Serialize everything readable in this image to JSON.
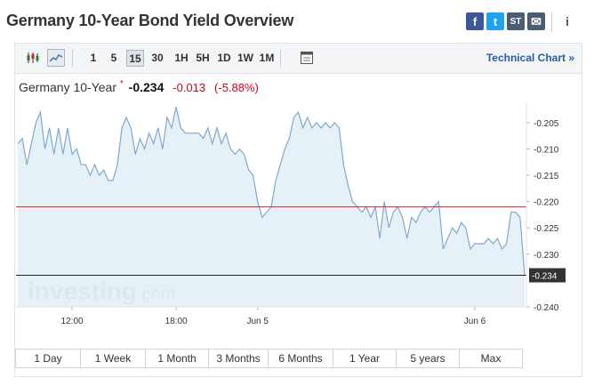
{
  "header": {
    "title": "Germany 10-Year Bond Yield Overview",
    "share_icons": [
      "facebook-icon",
      "twitter-icon",
      "stocktwits-icon",
      "email-icon",
      "info-icon"
    ],
    "share_glyphs": {
      "facebook": "f",
      "twitter": "t",
      "stocktwits": "ST",
      "email": "✉",
      "info": "i"
    }
  },
  "toolbar": {
    "chart_types": [
      "candlestick-icon",
      "area-chart-icon"
    ],
    "timeframes": [
      "1",
      "5",
      "15",
      "30",
      "1H",
      "5H",
      "1D",
      "1W",
      "1M"
    ],
    "active_timeframe": "15",
    "technical_link": "Technical Chart »"
  },
  "quote": {
    "name": "Germany 10-Year",
    "star": "*",
    "last": "-0.234",
    "change": "-0.013",
    "change_pct": "(-5.88%)"
  },
  "range_buttons": [
    "1 Day",
    "1 Week",
    "1 Month",
    "3 Months",
    "6 Months",
    "1 Year",
    "5 years",
    "Max"
  ],
  "colors": {
    "line": "#7fa9cf",
    "area": "#e2eef6",
    "prev_close": "#c62828",
    "current_marker": "#333333",
    "negative": "#d0021b",
    "facebook": "#3b5998",
    "twitter": "#1da1f2",
    "stocktwits": "#4a5d73",
    "email": "#4a5d73"
  },
  "watermark": "investing.com",
  "chart_data": {
    "type": "area",
    "x_ticks": [
      "12:00",
      "18:00",
      "Jun 5",
      "Jun 6"
    ],
    "y_ticks": [
      "-0.205",
      "-0.210",
      "-0.215",
      "-0.220",
      "-0.225",
      "-0.230",
      "-0.240"
    ],
    "ylim": [
      -0.24,
      -0.2013
    ],
    "current_value_label": "-0.234",
    "prev_close": -0.221,
    "grid": false,
    "series": [
      {
        "values": [
          -0.209,
          -0.208,
          -0.213,
          -0.209,
          -0.205,
          -0.203,
          -0.21,
          -0.206,
          -0.211,
          -0.206,
          -0.211,
          -0.206,
          -0.211,
          -0.21,
          -0.213,
          -0.213,
          -0.215,
          -0.213,
          -0.215,
          -0.214,
          -0.216,
          -0.216,
          -0.213,
          -0.206,
          -0.204,
          -0.206,
          -0.211,
          -0.208,
          -0.21,
          -0.207,
          -0.209,
          -0.206,
          -0.21,
          -0.204,
          -0.206,
          -0.202,
          -0.206,
          -0.207,
          -0.207,
          -0.207,
          -0.207,
          -0.208,
          -0.206,
          -0.209,
          -0.206,
          -0.209,
          -0.207,
          -0.21,
          -0.211,
          -0.21,
          -0.211,
          -0.214,
          -0.215,
          -0.22,
          -0.223,
          -0.222,
          -0.221,
          -0.216,
          -0.213,
          -0.21,
          -0.208,
          -0.204,
          -0.203,
          -0.206,
          -0.204,
          -0.206,
          -0.205,
          -0.206,
          -0.205,
          -0.206,
          -0.205,
          -0.206,
          -0.213,
          -0.217,
          -0.22,
          -0.221,
          -0.222,
          -0.221,
          -0.223,
          -0.221,
          -0.227,
          -0.22,
          -0.225,
          -0.222,
          -0.221,
          -0.223,
          -0.227,
          -0.223,
          -0.224,
          -0.222,
          -0.221,
          -0.222,
          -0.221,
          -0.22,
          -0.229,
          -0.227,
          -0.225,
          -0.226,
          -0.224,
          -0.225,
          -0.229,
          -0.228,
          -0.228,
          -0.228,
          -0.227,
          -0.228,
          -0.227,
          -0.229,
          -0.228,
          -0.222,
          -0.222,
          -0.223,
          -0.234
        ]
      }
    ]
  }
}
